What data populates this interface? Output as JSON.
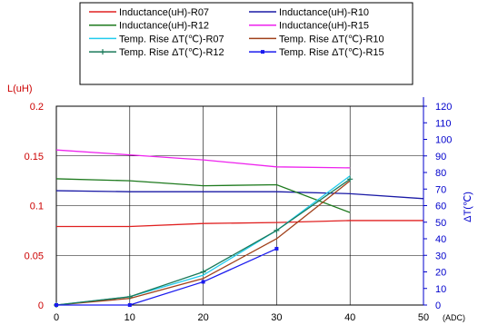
{
  "chart_data": {
    "type": "line",
    "x": [
      0,
      10,
      20,
      30,
      40
    ],
    "xlim": [
      0,
      50
    ],
    "xticks": [
      "0",
      "10",
      "20",
      "30",
      "40",
      "50"
    ],
    "xlabel": "(ADC)",
    "ylabel_left": "L(uH)",
    "ylim_left": [
      0,
      0.2
    ],
    "yticks_left": [
      "0",
      "0.05",
      "0.1",
      "0.15",
      "0.2"
    ],
    "ylabel_right": "ΔT(℃)",
    "ylim_right": [
      0,
      120
    ],
    "yticks_right": [
      "0",
      "10",
      "20",
      "30",
      "40",
      "50",
      "60",
      "70",
      "80",
      "90",
      "100",
      "110",
      "120"
    ],
    "grid": true,
    "legend_position": "top",
    "series": [
      {
        "name": "Inductance(uH)-R07",
        "axis": "left",
        "color": "#e02020",
        "marker": "none",
        "x": [
          0,
          10,
          20,
          30,
          40,
          50
        ],
        "values": [
          0.079,
          0.079,
          0.082,
          0.083,
          0.085,
          0.085
        ]
      },
      {
        "name": "Inductance(uH)-R10",
        "axis": "left",
        "color": "#1a1aa6",
        "marker": "none",
        "x": [
          0,
          10,
          20,
          30,
          40,
          50
        ],
        "values": [
          0.115,
          0.114,
          0.114,
          0.114,
          0.112,
          0.107
        ]
      },
      {
        "name": "Inductance(uH)-R12",
        "axis": "left",
        "color": "#1e7a1e",
        "marker": "none",
        "x": [
          0,
          10,
          20,
          30,
          40
        ],
        "values": [
          0.127,
          0.125,
          0.12,
          0.121,
          0.093
        ]
      },
      {
        "name": "Inductance(uH)-R15",
        "axis": "left",
        "color": "#ee22ee",
        "marker": "none",
        "x": [
          0,
          10,
          20,
          30,
          40
        ],
        "values": [
          0.156,
          0.151,
          0.146,
          0.139,
          0.138
        ]
      },
      {
        "name": "Temp. Rise ΔT(℃)-R07",
        "axis": "right",
        "color": "#22ccee",
        "marker": "none",
        "x": [
          0,
          10,
          20,
          30,
          40
        ],
        "values": [
          0,
          5,
          18,
          45,
          78
        ]
      },
      {
        "name": "Temp. Rise ΔT(℃)-R10",
        "axis": "right",
        "color": "#a0401a",
        "marker": "none",
        "x": [
          0,
          10,
          20,
          30,
          40
        ],
        "values": [
          0,
          4,
          16,
          40,
          75
        ]
      },
      {
        "name": "Temp. Rise ΔT(℃)-R12",
        "axis": "right",
        "color": "#1a7a5a",
        "marker": "plus",
        "x": [
          0,
          10,
          20,
          30,
          40
        ],
        "values": [
          0,
          5,
          20,
          45,
          76
        ]
      },
      {
        "name": "Temp. Rise ΔT(℃)-R15",
        "axis": "right",
        "color": "#1a1aee",
        "marker": "square",
        "x": [
          0,
          10,
          20,
          30
        ],
        "values": [
          0,
          0,
          14,
          34
        ]
      }
    ]
  }
}
